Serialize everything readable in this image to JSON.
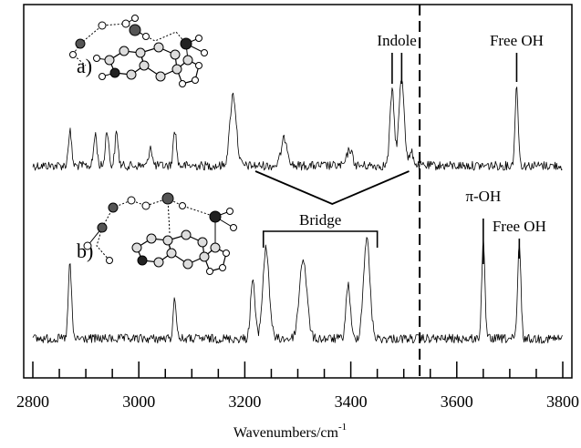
{
  "chart_data": {
    "type": "line",
    "xlabel": "Wavenumbers/cm",
    "xlabel_superscript": "-1",
    "xlim": [
      2800,
      3800
    ],
    "x_ticks": [
      "2800",
      "3000",
      "3200",
      "3400",
      "3600",
      "3800"
    ],
    "grid": false,
    "noise": 5,
    "series": [
      {
        "name": "a)",
        "peaks": [
          {
            "x": 2870,
            "h": 0.38,
            "w": 3
          },
          {
            "x": 2918,
            "h": 0.35,
            "w": 3
          },
          {
            "x": 2940,
            "h": 0.4,
            "w": 3
          },
          {
            "x": 2958,
            "h": 0.36,
            "w": 3
          },
          {
            "x": 3022,
            "h": 0.22,
            "w": 3
          },
          {
            "x": 3068,
            "h": 0.4,
            "w": 3
          },
          {
            "x": 3178,
            "h": 0.78,
            "w": 6
          },
          {
            "x": 3275,
            "h": 0.3,
            "w": 6
          },
          {
            "x": 3398,
            "h": 0.18,
            "w": 5
          },
          {
            "x": 3478,
            "h": 0.82,
            "w": 4
          },
          {
            "x": 3496,
            "h": 0.96,
            "w": 5
          },
          {
            "x": 3515,
            "h": 0.14,
            "w": 4
          },
          {
            "x": 3713,
            "h": 0.86,
            "w": 3
          }
        ]
      },
      {
        "name": "b)",
        "peaks": [
          {
            "x": 2870,
            "h": 0.75,
            "w": 3
          },
          {
            "x": 3068,
            "h": 0.4,
            "w": 3
          },
          {
            "x": 3215,
            "h": 0.6,
            "w": 4
          },
          {
            "x": 3240,
            "h": 0.9,
            "w": 6
          },
          {
            "x": 3310,
            "h": 0.8,
            "w": 7
          },
          {
            "x": 3395,
            "h": 0.55,
            "w": 4
          },
          {
            "x": 3430,
            "h": 1.0,
            "w": 6
          },
          {
            "x": 3650,
            "h": 0.95,
            "w": 3
          },
          {
            "x": 3718,
            "h": 0.95,
            "w": 3
          }
        ]
      }
    ],
    "annotations": {
      "indole": "Indole",
      "free_oh_a": "Free OH",
      "bridge": "Bridge",
      "pi_oh": "π-OH",
      "free_oh_b": "Free OH"
    },
    "marked_x": {
      "indole_a": 3478,
      "indole_b": 3496,
      "free_oh_a": 3713,
      "bridge_start": 3235,
      "bridge_end": 3450,
      "pi_oh": 3650,
      "free_oh_b": 3718,
      "dashed_line": 3530,
      "link_left": 3220,
      "link_right": 3510
    }
  }
}
